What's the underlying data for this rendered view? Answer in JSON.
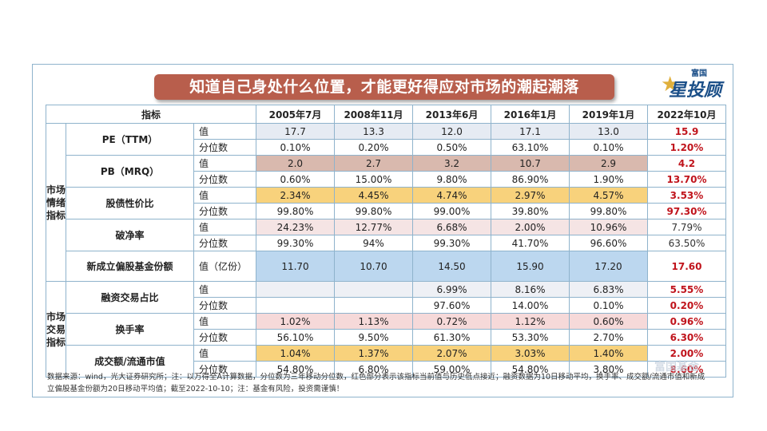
{
  "title": "知道自己身处什么位置，才能更好得应对市场的潮起潮落",
  "logo": {
    "top": "富国",
    "big": "星投顾",
    "watermark": "富国基金"
  },
  "header": {
    "indicator": "指标",
    "periods": [
      "2005年7月",
      "2008年11月",
      "2013年6月",
      "2016年1月",
      "2019年1月",
      "2022年10月"
    ]
  },
  "groups": {
    "sentiment": "市场情绪指标",
    "trading": "市场交易指标"
  },
  "rows": {
    "pe": {
      "name": "PE（TTM）",
      "v": {
        "label": "值",
        "vals": [
          "17.7",
          "13.3",
          "12.0",
          "17.1",
          "13.0",
          "15.9"
        ]
      },
      "p": {
        "label": "分位数",
        "vals": [
          "0.10%",
          "0.20%",
          "0.50%",
          "63.10%",
          "0.10%",
          "1.20%"
        ]
      }
    },
    "pb": {
      "name": "PB（MRQ）",
      "v": {
        "label": "值",
        "vals": [
          "2.0",
          "2.7",
          "3.2",
          "10.7",
          "2.9",
          "4.2"
        ]
      },
      "p": {
        "label": "分位数",
        "vals": [
          "0.60%",
          "15.00%",
          "9.80%",
          "86.90%",
          "1.90%",
          "13.70%"
        ]
      }
    },
    "bond": {
      "name": "股债性价比",
      "v": {
        "label": "值",
        "vals": [
          "2.34%",
          "4.45%",
          "4.74%",
          "2.97%",
          "4.57%",
          "3.53%"
        ]
      },
      "p": {
        "label": "分位数",
        "vals": [
          "99.80%",
          "99.80%",
          "99.00%",
          "39.80%",
          "99.80%",
          "97.30%"
        ]
      }
    },
    "pnet": {
      "name": "破净率",
      "v": {
        "label": "值",
        "vals": [
          "24.23%",
          "12.77%",
          "6.68%",
          "2.00%",
          "10.96%",
          "7.79%"
        ]
      },
      "p": {
        "label": "分位数",
        "vals": [
          "99.30%",
          "94%",
          "99.30%",
          "41.70%",
          "96.60%",
          "63.50%"
        ]
      }
    },
    "fund": {
      "name": "新成立偏股基金份额",
      "v": {
        "label": "值（亿份）",
        "vals": [
          "11.70",
          "10.70",
          "14.50",
          "15.90",
          "17.20",
          "17.60"
        ]
      }
    },
    "margin": {
      "name": "融资交易占比",
      "v": {
        "label": "值",
        "vals": [
          "",
          "",
          "6.99%",
          "8.16%",
          "6.83%",
          "5.55%"
        ]
      },
      "p": {
        "label": "分位数",
        "vals": [
          "",
          "",
          "97.60%",
          "14.00%",
          "0.10%",
          "0.20%"
        ]
      }
    },
    "turn": {
      "name": "换手率",
      "v": {
        "label": "值",
        "vals": [
          "1.02%",
          "1.13%",
          "0.72%",
          "1.12%",
          "0.60%",
          "0.96%"
        ]
      },
      "p": {
        "label": "分位数",
        "vals": [
          "56.10%",
          "9.50%",
          "61.30%",
          "53.30%",
          "2.70%",
          "6.30%"
        ]
      }
    },
    "vol": {
      "name": "成交额/流通市值",
      "v": {
        "label": "值",
        "vals": [
          "1.04%",
          "1.37%",
          "2.07%",
          "3.03%",
          "1.40%",
          "2.00%"
        ]
      },
      "p": {
        "label": "分位数",
        "vals": [
          "54.80%",
          "6.80%",
          "59.00%",
          "54.80%",
          "3.80%",
          "8.60%"
        ]
      }
    }
  },
  "note": "数据来源：wind，光大证券研究所；注：以万得全A计算数据，分位数为三年移动分位数，红色部分表示该指标当前值与历史低点接近；融资数据为10日移动平均，换手率、成交额/流通市值和新成立偏股基金份额为20日移动平均值；截至2022-10-10；注：基金有风险，投资需谨慎！",
  "colors": {
    "banner": "#b85e4c",
    "border": "#8fb3cc",
    "highlight_red": "#c0141c"
  }
}
